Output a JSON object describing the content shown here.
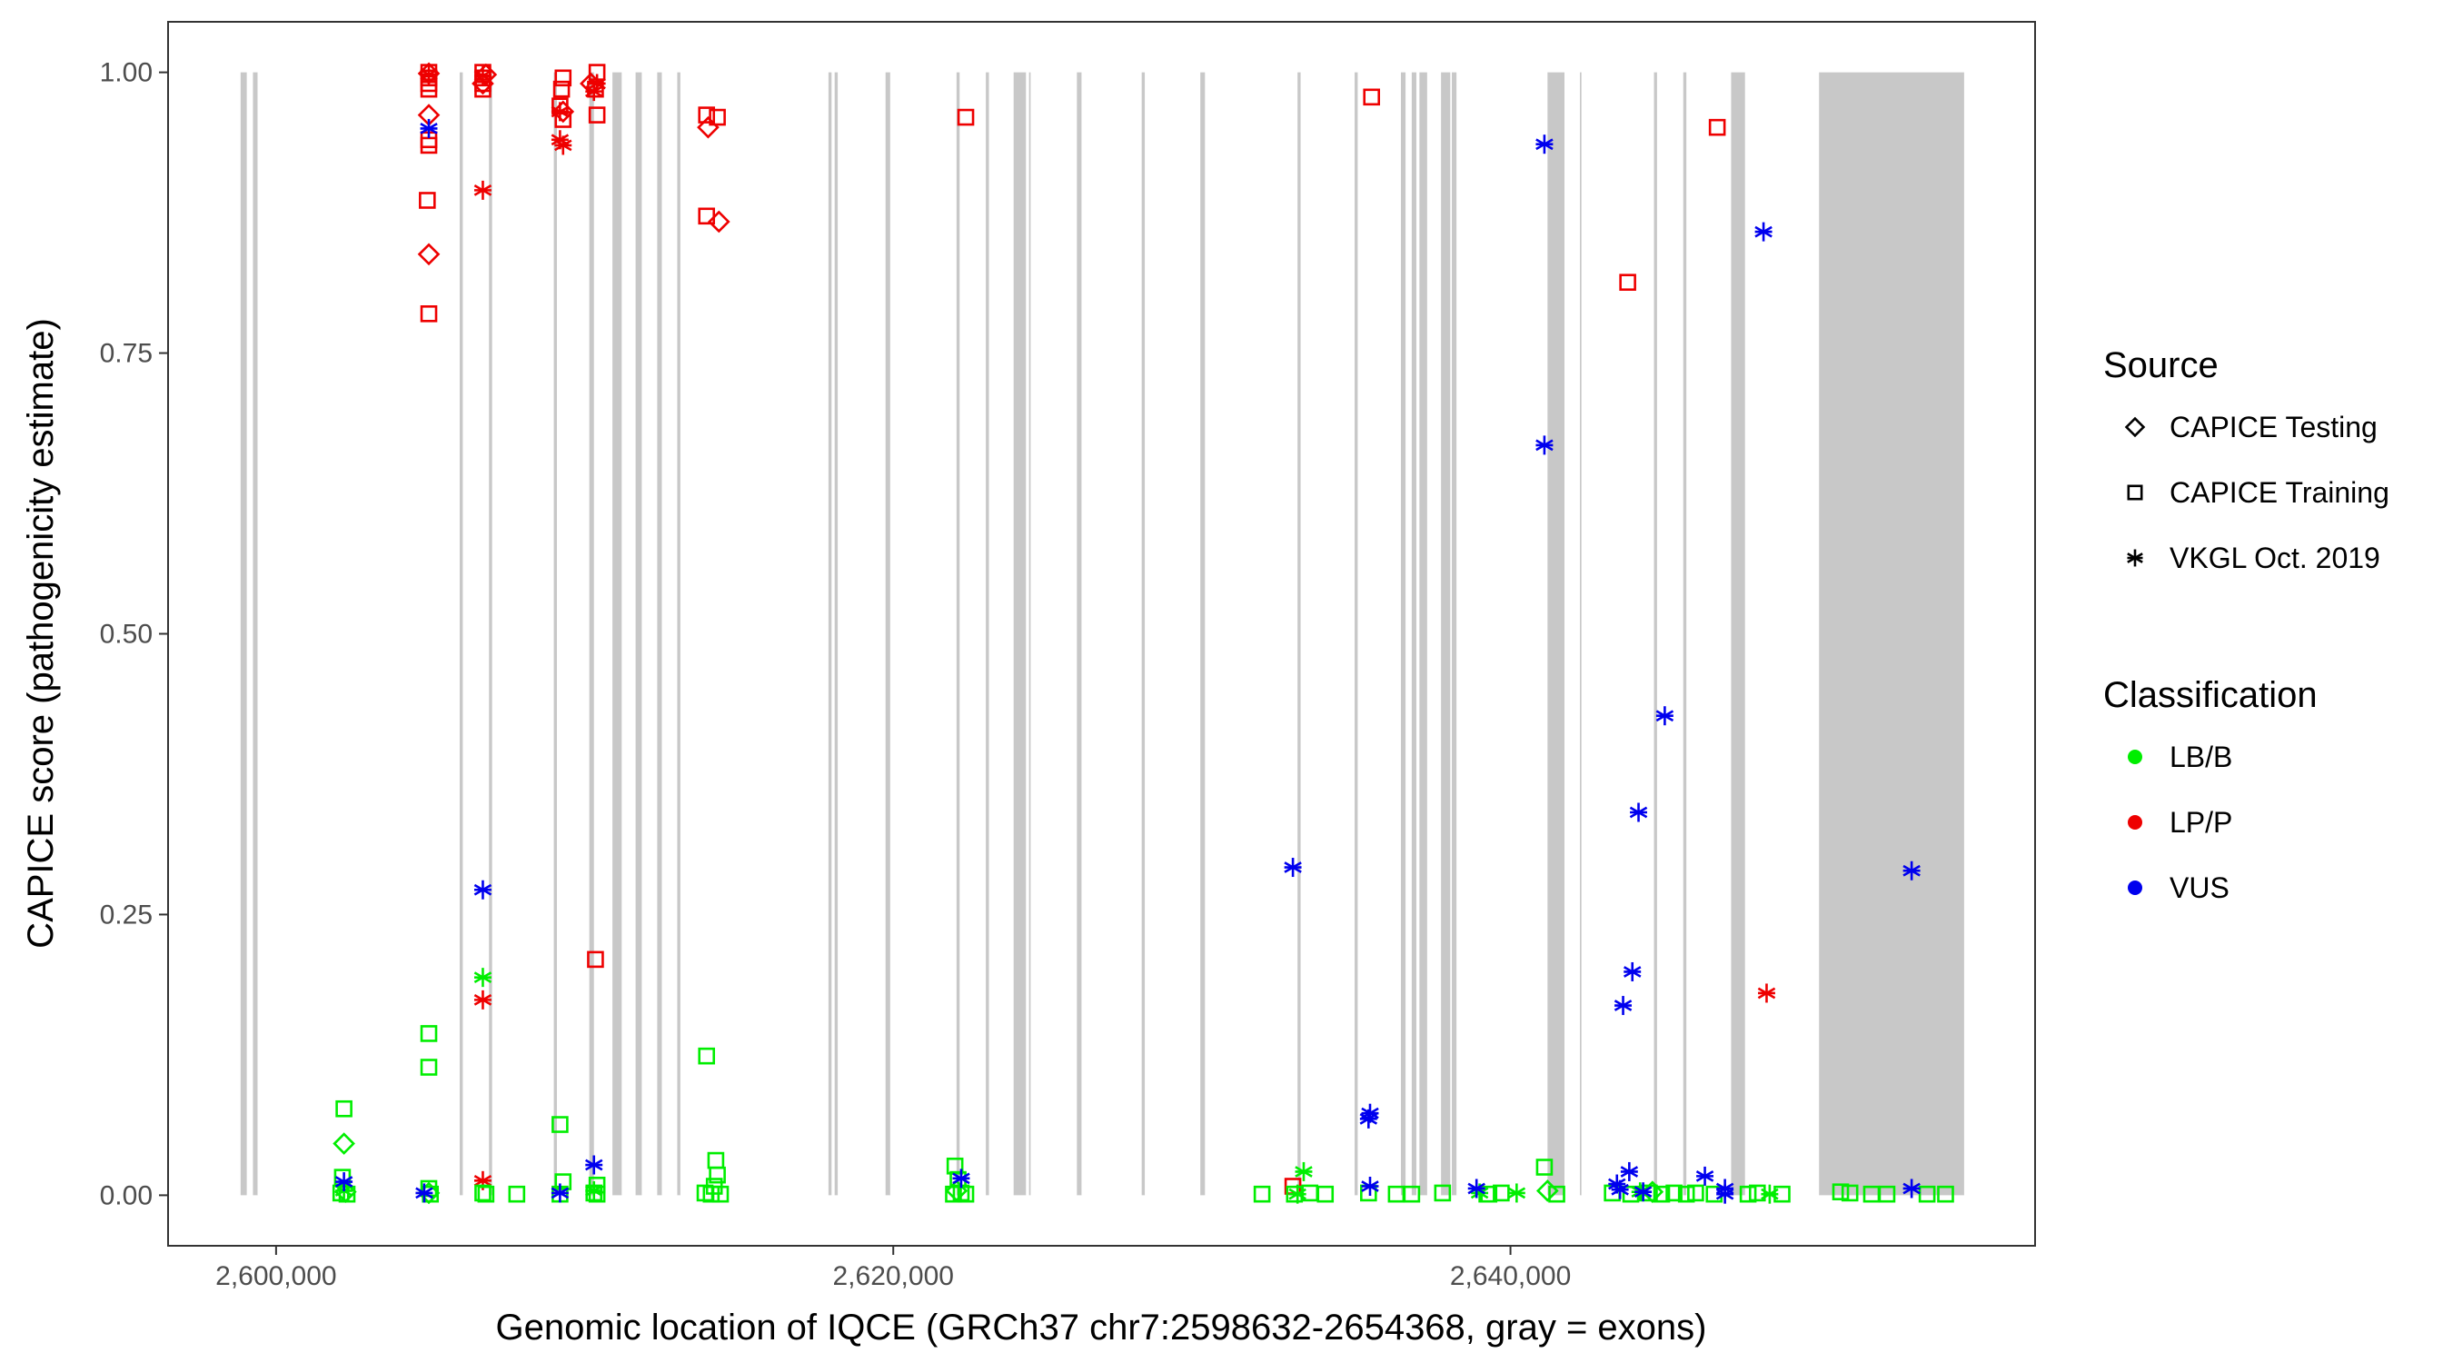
{
  "chart_data": {
    "type": "scatter",
    "title": "",
    "xlabel": "Genomic location of IQCE (GRCh37 chr7:2598632-2654368, gray = exons)",
    "ylabel": "CAPICE score (pathogenicity estimate)",
    "xlim": [
      2596500,
      2657000
    ],
    "ylim": [
      -0.045,
      1.045
    ],
    "grid": false,
    "x_ticks": [
      2600000,
      2620000,
      2640000
    ],
    "x_tick_labels": [
      "2,600,000",
      "2,620,000",
      "2,640,000"
    ],
    "y_ticks": [
      0.0,
      0.25,
      0.5,
      0.75,
      1.0
    ],
    "y_tick_labels": [
      "0.00",
      "0.25",
      "0.50",
      "0.75",
      "1.00"
    ],
    "exon_color": "#c8c8c8",
    "exons": [
      [
        2598850,
        2599050
      ],
      [
        2599250,
        2599400
      ],
      [
        2605950,
        2606050
      ],
      [
        2606900,
        2607000
      ],
      [
        2609000,
        2609100
      ],
      [
        2610150,
        2610300
      ],
      [
        2610900,
        2611200
      ],
      [
        2611650,
        2611850
      ],
      [
        2612350,
        2612500
      ],
      [
        2613000,
        2613100
      ],
      [
        2617900,
        2618000
      ],
      [
        2618100,
        2618200
      ],
      [
        2619750,
        2619900
      ],
      [
        2622050,
        2622150
      ],
      [
        2623000,
        2623100
      ],
      [
        2623900,
        2624300
      ],
      [
        2624400,
        2624450
      ],
      [
        2625950,
        2626100
      ],
      [
        2628050,
        2628150
      ],
      [
        2629950,
        2630100
      ],
      [
        2633100,
        2633200
      ],
      [
        2634950,
        2635050
      ],
      [
        2636450,
        2636600
      ],
      [
        2636800,
        2636950
      ],
      [
        2637050,
        2637300
      ],
      [
        2637750,
        2638050
      ],
      [
        2638100,
        2638250
      ],
      [
        2641200,
        2641750
      ],
      [
        2642250,
        2642300
      ],
      [
        2644650,
        2644750
      ],
      [
        2645600,
        2645700
      ],
      [
        2647150,
        2647600
      ],
      [
        2650000,
        2654700
      ]
    ],
    "legend": {
      "placement": "right",
      "source_title": "Source",
      "source_items": [
        {
          "label": "CAPICE Testing",
          "shape": "diamond"
        },
        {
          "label": "CAPICE Training",
          "shape": "square"
        },
        {
          "label": "VKGL Oct. 2019",
          "shape": "asterisk"
        }
      ],
      "class_title": "Classification",
      "class_items": [
        {
          "label": "LB/B",
          "color": "#00ee00"
        },
        {
          "label": "LP/P",
          "color": "#ee0000"
        },
        {
          "label": "VUS",
          "color": "#0000ee"
        }
      ]
    },
    "series": [
      {
        "classification": "LP/P",
        "source": "CAPICE Training",
        "shape": "square",
        "color": "#ee0000",
        "points": [
          [
            2604950,
            1.0
          ],
          [
            2604950,
            0.995
          ],
          [
            2604950,
            0.99
          ],
          [
            2604950,
            0.985
          ],
          [
            2604950,
            0.94
          ],
          [
            2604950,
            0.935
          ],
          [
            2604900,
            0.886
          ],
          [
            2604950,
            0.785
          ],
          [
            2606700,
            1.0
          ],
          [
            2606700,
            0.995
          ],
          [
            2606700,
            0.99
          ],
          [
            2606700,
            0.985
          ],
          [
            2609300,
            0.995
          ],
          [
            2609250,
            0.985
          ],
          [
            2609200,
            0.97
          ],
          [
            2609300,
            0.958
          ],
          [
            2610400,
            1.0
          ],
          [
            2610350,
            0.985
          ],
          [
            2610400,
            0.962
          ],
          [
            2610350,
            0.21
          ],
          [
            2613950,
            0.962
          ],
          [
            2614300,
            0.96
          ],
          [
            2613950,
            0.872
          ],
          [
            2622350,
            0.96
          ],
          [
            2635500,
            0.978
          ],
          [
            2643800,
            0.813
          ],
          [
            2646700,
            0.951
          ],
          [
            2632950,
            0.008
          ]
        ]
      },
      {
        "classification": "LP/P",
        "source": "CAPICE Testing",
        "shape": "diamond",
        "color": "#ee0000",
        "points": [
          [
            2604950,
            0.999
          ],
          [
            2604950,
            0.962
          ],
          [
            2604950,
            0.838
          ],
          [
            2606700,
            0.99
          ],
          [
            2606800,
            0.998
          ],
          [
            2609300,
            0.965
          ],
          [
            2610200,
            0.99
          ],
          [
            2614000,
            0.951
          ],
          [
            2614350,
            0.867
          ]
        ]
      },
      {
        "classification": "LP/P",
        "source": "VKGL Oct. 2019",
        "shape": "asterisk",
        "color": "#ee0000",
        "points": [
          [
            2604950,
            0.998
          ],
          [
            2606700,
            0.997
          ],
          [
            2606700,
            0.895
          ],
          [
            2606700,
            0.174
          ],
          [
            2606700,
            0.013
          ],
          [
            2609200,
            0.965
          ],
          [
            2609200,
            0.94
          ],
          [
            2609300,
            0.935
          ],
          [
            2610300,
            0.983
          ],
          [
            2610400,
            0.99
          ],
          [
            2648300,
            0.18
          ]
        ]
      },
      {
        "classification": "LB/B",
        "source": "CAPICE Training",
        "shape": "square",
        "color": "#00ee00",
        "points": [
          [
            2602200,
            0.077
          ],
          [
            2602150,
            0.016
          ],
          [
            2602100,
            0.002
          ],
          [
            2602300,
            0.001
          ],
          [
            2604950,
            0.144
          ],
          [
            2604950,
            0.114
          ],
          [
            2604950,
            0.006
          ],
          [
            2605000,
            0.001
          ],
          [
            2606700,
            0.002
          ],
          [
            2606800,
            0.001
          ],
          [
            2607800,
            0.001
          ],
          [
            2609200,
            0.063
          ],
          [
            2609300,
            0.012
          ],
          [
            2609200,
            0.001
          ],
          [
            2610400,
            0.009
          ],
          [
            2610300,
            0.002
          ],
          [
            2610400,
            0.001
          ],
          [
            2613950,
            0.124
          ],
          [
            2614250,
            0.031
          ],
          [
            2614300,
            0.018
          ],
          [
            2614200,
            0.008
          ],
          [
            2613900,
            0.002
          ],
          [
            2614100,
            0.001
          ],
          [
            2614400,
            0.001
          ],
          [
            2622000,
            0.026
          ],
          [
            2622100,
            0.014
          ],
          [
            2622200,
            0.002
          ],
          [
            2621950,
            0.001
          ],
          [
            2622350,
            0.001
          ],
          [
            2631950,
            0.001
          ],
          [
            2633000,
            0.001
          ],
          [
            2633500,
            0.002
          ],
          [
            2634000,
            0.001
          ],
          [
            2635400,
            0.002
          ],
          [
            2636300,
            0.001
          ],
          [
            2636800,
            0.001
          ],
          [
            2637800,
            0.002
          ],
          [
            2639300,
            0.001
          ],
          [
            2639700,
            0.002
          ],
          [
            2641100,
            0.025
          ],
          [
            2641500,
            0.001
          ],
          [
            2643300,
            0.002
          ],
          [
            2643900,
            0.001
          ],
          [
            2644500,
            0.002
          ],
          [
            2644900,
            0.001
          ],
          [
            2645300,
            0.002
          ],
          [
            2645700,
            0.001
          ],
          [
            2646000,
            0.002
          ],
          [
            2646600,
            0.001
          ],
          [
            2647700,
            0.001
          ],
          [
            2648000,
            0.002
          ],
          [
            2648800,
            0.001
          ],
          [
            2650700,
            0.003
          ],
          [
            2651000,
            0.002
          ],
          [
            2651700,
            0.001
          ],
          [
            2652200,
            0.001
          ],
          [
            2653500,
            0.001
          ],
          [
            2654100,
            0.001
          ]
        ]
      },
      {
        "classification": "LB/B",
        "source": "CAPICE Testing",
        "shape": "diamond",
        "color": "#00ee00",
        "points": [
          [
            2602200,
            0.046
          ],
          [
            2602250,
            0.003
          ],
          [
            2604950,
            0.002
          ],
          [
            2622050,
            0.004
          ],
          [
            2641200,
            0.004
          ],
          [
            2644600,
            0.003
          ]
        ]
      },
      {
        "classification": "LB/B",
        "source": "VKGL Oct. 2019",
        "shape": "asterisk",
        "color": "#00ee00",
        "points": [
          [
            2606700,
            0.194
          ],
          [
            2602200,
            0.004
          ],
          [
            2610300,
            0.004
          ],
          [
            2633300,
            0.021
          ],
          [
            2639000,
            0.002
          ],
          [
            2640200,
            0.002
          ],
          [
            2644200,
            0.003
          ],
          [
            2648400,
            0.001
          ],
          [
            2633100,
            0.001
          ]
        ]
      },
      {
        "classification": "VUS",
        "source": "VKGL Oct. 2019",
        "shape": "asterisk",
        "color": "#0000ee",
        "points": [
          [
            2604950,
            0.95
          ],
          [
            2606700,
            0.272
          ],
          [
            2602200,
            0.012
          ],
          [
            2604800,
            0.002
          ],
          [
            2609200,
            0.002
          ],
          [
            2610300,
            0.027
          ],
          [
            2622200,
            0.015
          ],
          [
            2632950,
            0.292
          ],
          [
            2635450,
            0.073
          ],
          [
            2635400,
            0.068
          ],
          [
            2635450,
            0.008
          ],
          [
            2638900,
            0.006
          ],
          [
            2641100,
            0.936
          ],
          [
            2641100,
            0.668
          ],
          [
            2643450,
            0.01
          ],
          [
            2643550,
            0.005
          ],
          [
            2643650,
            0.169
          ],
          [
            2643850,
            0.021
          ],
          [
            2643950,
            0.199
          ],
          [
            2644150,
            0.341
          ],
          [
            2644300,
            0.003
          ],
          [
            2645000,
            0.427
          ],
          [
            2646300,
            0.017
          ],
          [
            2646950,
            0.006
          ],
          [
            2646950,
            0.001
          ],
          [
            2648200,
            0.858
          ],
          [
            2653000,
            0.289
          ],
          [
            2653000,
            0.006
          ]
        ]
      }
    ]
  }
}
